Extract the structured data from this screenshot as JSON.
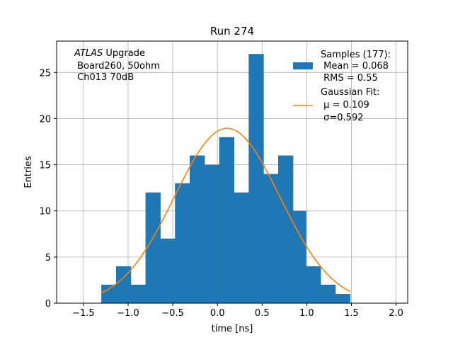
{
  "chart_data": {
    "type": "bar",
    "title": "Run 274",
    "xlabel": "time [ns]",
    "ylabel": "Entries",
    "xlim": [
      -1.8,
      2.13
    ],
    "ylim": [
      0,
      28.4
    ],
    "xticks": [
      -1.5,
      -1.0,
      -0.5,
      0.0,
      0.5,
      1.0,
      1.5,
      2.0
    ],
    "xtick_labels": [
      "−1.5",
      "−1.0",
      "−0.5",
      "0.0",
      "0.5",
      "1.0",
      "1.5",
      "2.0"
    ],
    "yticks": [
      0,
      5,
      10,
      15,
      20,
      25
    ],
    "ytick_labels": [
      "0",
      "5",
      "10",
      "15",
      "20",
      "25"
    ],
    "grid": true,
    "bar_color": "#1f77b4",
    "fit_color": "#ff7f0e",
    "bin_edges": [
      -1.3,
      -1.135,
      -0.97,
      -0.805,
      -0.64,
      -0.475,
      -0.31,
      -0.145,
      0.02,
      0.185,
      0.35,
      0.515,
      0.68,
      0.845,
      0.99,
      1.155,
      1.32,
      1.485
    ],
    "counts": [
      2,
      4,
      2,
      12,
      7,
      13,
      16,
      15,
      18,
      12,
      27,
      14,
      16,
      10,
      4,
      2,
      1
    ],
    "fit": {
      "mu": 0.109,
      "sigma": 0.592,
      "amplitude": 18.95,
      "range": [
        -1.3,
        1.49
      ]
    },
    "annotation": {
      "line1_italic": "ATLAS",
      "line1_rest": " Upgrade",
      "line2": " Board260, 50ohm",
      "line3": " Ch013 70dB"
    },
    "legend": {
      "position": "top-right",
      "samples_line1": "Samples (177):",
      "samples_line2": " Mean = 0.068",
      "samples_line3": " RMS = 0.55",
      "fit_line1": "Gaussian Fit:",
      "fit_line2": " μ = 0.109",
      "fit_line3": " σ=0.592"
    }
  }
}
